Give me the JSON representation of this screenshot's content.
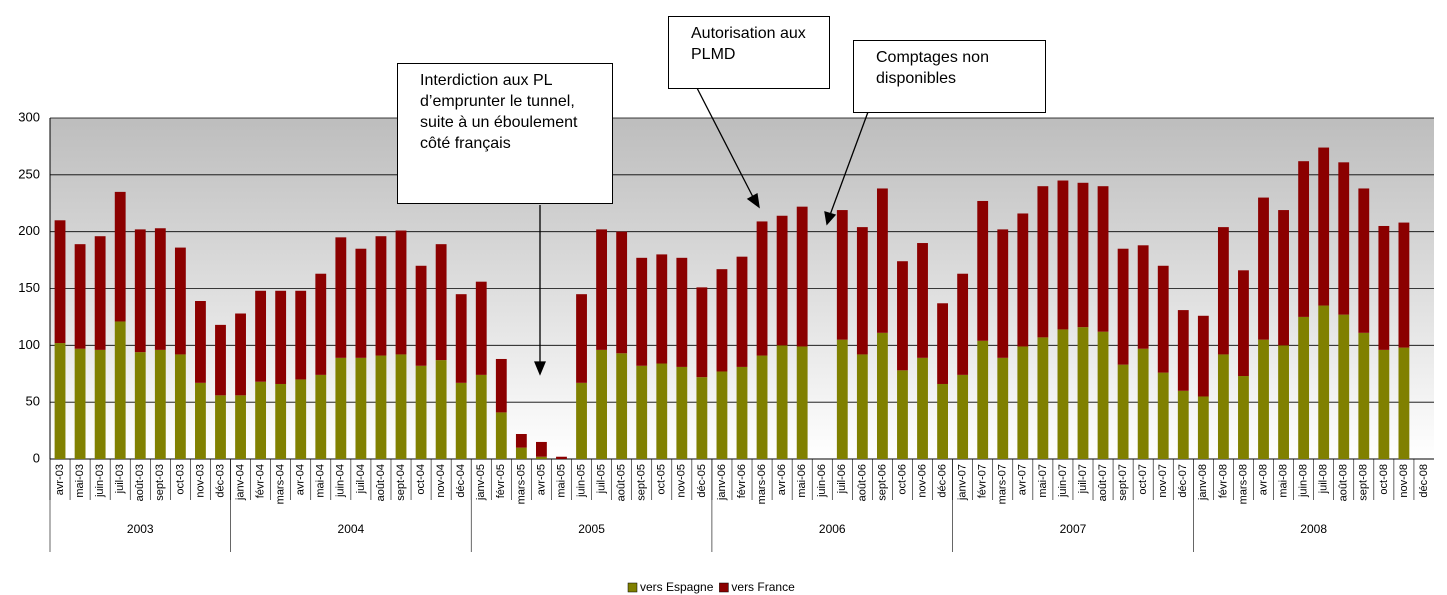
{
  "chart_data": {
    "type": "stacked_bar",
    "categories": [
      "avr-03",
      "mai-03",
      "juin-03",
      "juil-03",
      "août-03",
      "sept-03",
      "oct-03",
      "nov-03",
      "déc-03",
      "janv-04",
      "févr-04",
      "mars-04",
      "avr-04",
      "mai-04",
      "juin-04",
      "juil-04",
      "août-04",
      "sept-04",
      "oct-04",
      "nov-04",
      "déc-04",
      "janv-05",
      "févr-05",
      "mars-05",
      "avr-05",
      "mai-05",
      "juin-05",
      "juil-05",
      "août-05",
      "sept-05",
      "oct-05",
      "nov-05",
      "déc-05",
      "janv-06",
      "févr-06",
      "mars-06",
      "avr-06",
      "mai-06",
      "juin-06",
      "juil-06",
      "août-06",
      "sept-06",
      "oct-06",
      "nov-06",
      "déc-06",
      "janv-07",
      "févr-07",
      "mars-07",
      "avr-07",
      "mai-07",
      "juin-07",
      "juil-07",
      "août-07",
      "sept-07",
      "oct-07",
      "nov-07",
      "déc-07",
      "janv-08",
      "févr-08",
      "mars-08",
      "avr-08",
      "mai-08",
      "juin-08",
      "juil-08",
      "août-08",
      "sept-08",
      "oct-08",
      "nov-08",
      "déc-08"
    ],
    "groups": [
      {
        "name": "2003",
        "count": 9
      },
      {
        "name": "2004",
        "count": 12
      },
      {
        "name": "2005",
        "count": 12
      },
      {
        "name": "2006",
        "count": 12
      },
      {
        "name": "2007",
        "count": 12
      },
      {
        "name": "2008",
        "count": 12
      }
    ],
    "series": [
      {
        "name": "vers Espagne",
        "color": "#808000",
        "values": [
          102,
          97,
          96,
          121,
          94,
          96,
          92,
          67,
          56,
          56,
          68,
          66,
          70,
          74,
          89,
          89,
          91,
          92,
          82,
          87,
          67,
          74,
          41,
          10,
          2,
          0,
          67,
          96,
          93,
          82,
          84,
          81,
          72,
          77,
          81,
          91,
          100,
          99,
          null,
          105,
          92,
          111,
          78,
          89,
          66,
          74,
          104,
          89,
          99,
          107,
          114,
          116,
          112,
          83,
          97,
          76,
          60,
          55,
          92,
          73,
          105,
          100,
          125,
          135,
          127,
          111,
          96,
          98,
          null
        ]
      },
      {
        "name": "vers France",
        "color": "#8b0000",
        "values": [
          108,
          92,
          100,
          114,
          108,
          107,
          94,
          72,
          62,
          72,
          80,
          82,
          78,
          89,
          106,
          96,
          105,
          109,
          88,
          102,
          78,
          82,
          47,
          12,
          13,
          2,
          78,
          106,
          107,
          95,
          96,
          96,
          79,
          90,
          97,
          118,
          114,
          123,
          null,
          114,
          112,
          127,
          96,
          101,
          71,
          89,
          123,
          113,
          117,
          133,
          131,
          127,
          128,
          102,
          91,
          94,
          71,
          71,
          112,
          93,
          125,
          119,
          137,
          139,
          134,
          127,
          109,
          110,
          null
        ]
      }
    ],
    "ylim": [
      0,
      300
    ],
    "yticks": [
      0,
      50,
      100,
      150,
      200,
      250,
      300
    ],
    "grid": true,
    "legend": "bottom",
    "annotations": [
      {
        "text": "Interdiction aux PL d’emprunter le tunnel, suite à un éboulement côté français"
      },
      {
        "text": "Autorisation aux PLMD"
      },
      {
        "text": "Comptages non disponibles"
      }
    ]
  }
}
